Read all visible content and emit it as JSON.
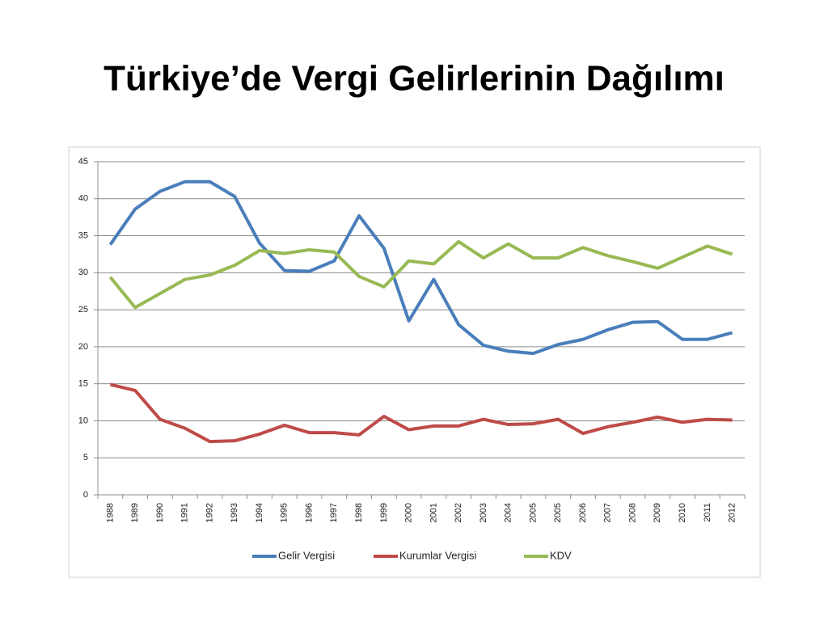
{
  "chart_data": {
    "type": "line",
    "title": "Türkiye’de Vergi Gelirlerinin Dağılımı",
    "categories": [
      "1988",
      "1989",
      "1990",
      "1991",
      "1992",
      "1993",
      "1994",
      "1995",
      "1996",
      "1997",
      "1998",
      "1999",
      "2000",
      "2001",
      "2002",
      "2003",
      "2004",
      "2005",
      "2005",
      "2006",
      "2007",
      "2008",
      "2009",
      "2010",
      "2011",
      "2012"
    ],
    "series": [
      {
        "name": "Gelir Vergisi",
        "color": "#4a7ebb",
        "values": [
          33.8,
          38.6,
          41,
          42.3,
          42.3,
          40.3,
          34,
          30.3,
          30.2,
          31.6,
          37.7,
          33.3,
          23.5,
          29.1,
          23,
          20.2,
          19.4,
          19.1,
          20.3,
          21,
          22.3,
          23.3,
          23.4,
          21,
          21,
          21.9
        ]
      },
      {
        "name": "Kurumlar Vergisi",
        "color": "#be4b48",
        "values": [
          14.9,
          14.1,
          10.2,
          9,
          7.2,
          7.3,
          8.2,
          9.4,
          8.4,
          8.4,
          8.1,
          10.6,
          8.8,
          9.3,
          9.3,
          10.2,
          9.5,
          9.6,
          10.2,
          8.3,
          9.2,
          9.8,
          10.5,
          9.8,
          10.2,
          10.1
        ]
      },
      {
        "name": "KDV",
        "color": "#98b954",
        "values": [
          29.4,
          25.3,
          27.2,
          29.1,
          29.7,
          31,
          33,
          32.6,
          33.1,
          32.8,
          29.5,
          28.1,
          31.6,
          31.2,
          34.2,
          32,
          33.9,
          32,
          32,
          33.4,
          32.3,
          31.5,
          30.6,
          32.1,
          33.6,
          32.5
        ]
      }
    ],
    "ylim": [
      0,
      45
    ],
    "yticks": [
      0,
      5,
      10,
      15,
      20,
      25,
      30,
      35,
      40,
      45
    ],
    "grid": true,
    "legend": "bottom"
  }
}
